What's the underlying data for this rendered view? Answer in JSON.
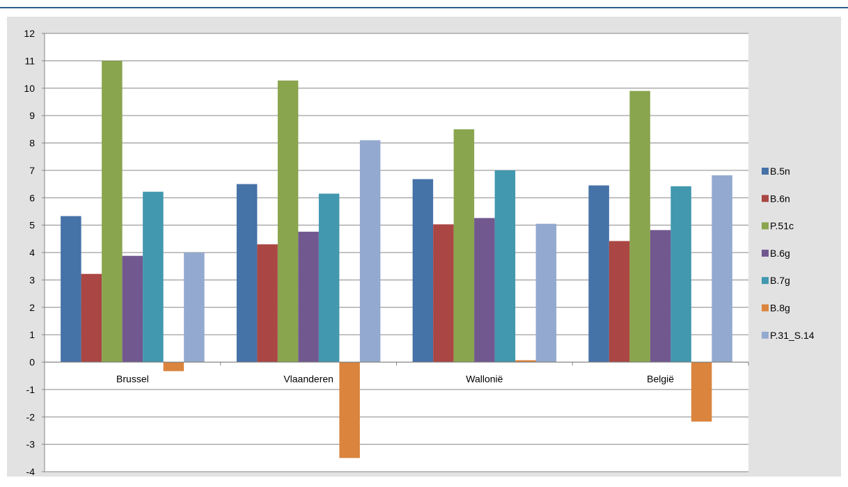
{
  "chart_data": {
    "type": "bar",
    "categories": [
      "Brussel",
      "Vlaanderen",
      "Wallonië",
      "België"
    ],
    "series": [
      {
        "name": "B.5n",
        "color": "#4572a7",
        "values": [
          5.33,
          6.5,
          6.68,
          6.45
        ]
      },
      {
        "name": "B.6n",
        "color": "#aa4643",
        "values": [
          3.22,
          4.3,
          5.03,
          4.42
        ]
      },
      {
        "name": "P.51c",
        "color": "#89a54e",
        "values": [
          11.0,
          10.28,
          8.5,
          9.9
        ]
      },
      {
        "name": "B.6g",
        "color": "#71588f",
        "values": [
          3.88,
          4.76,
          5.26,
          4.82
        ]
      },
      {
        "name": "B.7g",
        "color": "#4198af",
        "values": [
          6.22,
          6.15,
          7.0,
          6.42
        ]
      },
      {
        "name": "B.8g",
        "color": "#db843d",
        "values": [
          -0.33,
          -3.5,
          0.07,
          -2.17
        ]
      },
      {
        "name": "P.31_S.14",
        "color": "#93a9cf",
        "values": [
          4.0,
          8.1,
          5.05,
          6.82
        ]
      }
    ],
    "ylim": [
      -4,
      12
    ],
    "yticks": [
      "-4",
      "-3",
      "-2",
      "-1",
      "0",
      "1",
      "2",
      "3",
      "4",
      "5",
      "6",
      "7",
      "8",
      "9",
      "10",
      "11",
      "12"
    ],
    "grid": true,
    "legend_position": "right",
    "plot_background": "#ffffff",
    "frame_background": "#e2e2e2"
  }
}
